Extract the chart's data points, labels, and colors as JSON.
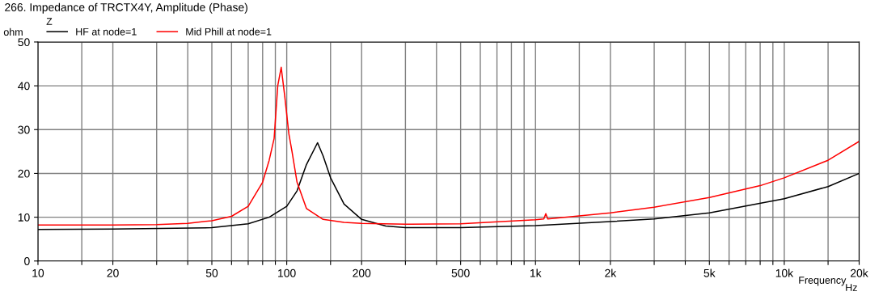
{
  "chart_data": {
    "type": "line",
    "title": "266. Impedance of TRCTX4Y, Amplitude (Phase)",
    "xlabel": "Frequency",
    "ylabel": "ohm",
    "annotations": [
      "Z",
      "Hz"
    ],
    "log": "x",
    "grid": true,
    "legend": "top left",
    "marker": "none",
    "line_style": "solid",
    "xlim": [
      10,
      20000
    ],
    "ylim": [
      0,
      50
    ],
    "yticks": [
      0,
      10,
      20,
      30,
      40,
      50
    ],
    "xticks": [
      10,
      {
        "value": 15,
        "label": null
      },
      20,
      {
        "value": 30,
        "label": null
      },
      {
        "value": 40,
        "label": null
      },
      50,
      {
        "value": 60,
        "label": null
      },
      {
        "value": 70,
        "label": null
      },
      {
        "value": 80,
        "label": null
      },
      {
        "value": 90,
        "label": null
      },
      100,
      {
        "value": 150,
        "label": null
      },
      200,
      {
        "value": 300,
        "label": null
      },
      {
        "value": 400,
        "label": null
      },
      500,
      {
        "value": 600,
        "label": null
      },
      {
        "value": 700,
        "label": null
      },
      {
        "value": 800,
        "label": null
      },
      {
        "value": 900,
        "label": null
      },
      {
        "value": 1000,
        "label": "1k"
      },
      {
        "value": 1500,
        "label": null
      },
      {
        "value": 2000,
        "label": "2k"
      },
      {
        "value": 3000,
        "label": null
      },
      {
        "value": 4000,
        "label": null
      },
      {
        "value": 5000,
        "label": "5k"
      },
      {
        "value": 6000,
        "label": null
      },
      {
        "value": 7000,
        "label": null
      },
      {
        "value": 8000,
        "label": null
      },
      {
        "value": 9000,
        "label": null
      },
      {
        "value": 10000,
        "label": "10k"
      },
      {
        "value": 15000,
        "label": null
      },
      {
        "value": 20000,
        "label": "20k"
      }
    ],
    "series": [
      {
        "name": "HF at node=1",
        "color": "#000000",
        "x": [
          10,
          20,
          50,
          70,
          85,
          100,
          110,
          120,
          133,
          140,
          150,
          170,
          200,
          250,
          300,
          500,
          1000,
          2000,
          3000,
          5000,
          10000,
          15000,
          20000
        ],
        "values": [
          7.2,
          7.3,
          7.6,
          8.5,
          10,
          12.5,
          16,
          22,
          27,
          24,
          19,
          13,
          9.5,
          8,
          7.6,
          7.6,
          8.1,
          9,
          9.6,
          11,
          14.2,
          17,
          20
        ]
      },
      {
        "name": "Mid Phill at node=1",
        "color": "#ff0000",
        "x": [
          10,
          20,
          30,
          40,
          50,
          60,
          70,
          80,
          85,
          89,
          92,
          95,
          98,
          102,
          105,
          110,
          120,
          140,
          170,
          200,
          300,
          500,
          1000,
          1080,
          1100,
          1120,
          2000,
          3000,
          5000,
          8000,
          10000,
          15000,
          20000
        ],
        "values": [
          8.2,
          8.2,
          8.3,
          8.6,
          9.2,
          10.2,
          12.5,
          18,
          23,
          28,
          40,
          44.2,
          38,
          29,
          25,
          18,
          12,
          9.5,
          8.8,
          8.6,
          8.4,
          8.5,
          9.4,
          9.6,
          10.8,
          9.6,
          11,
          12.3,
          14.5,
          17.2,
          19,
          23,
          27.3
        ]
      }
    ]
  }
}
